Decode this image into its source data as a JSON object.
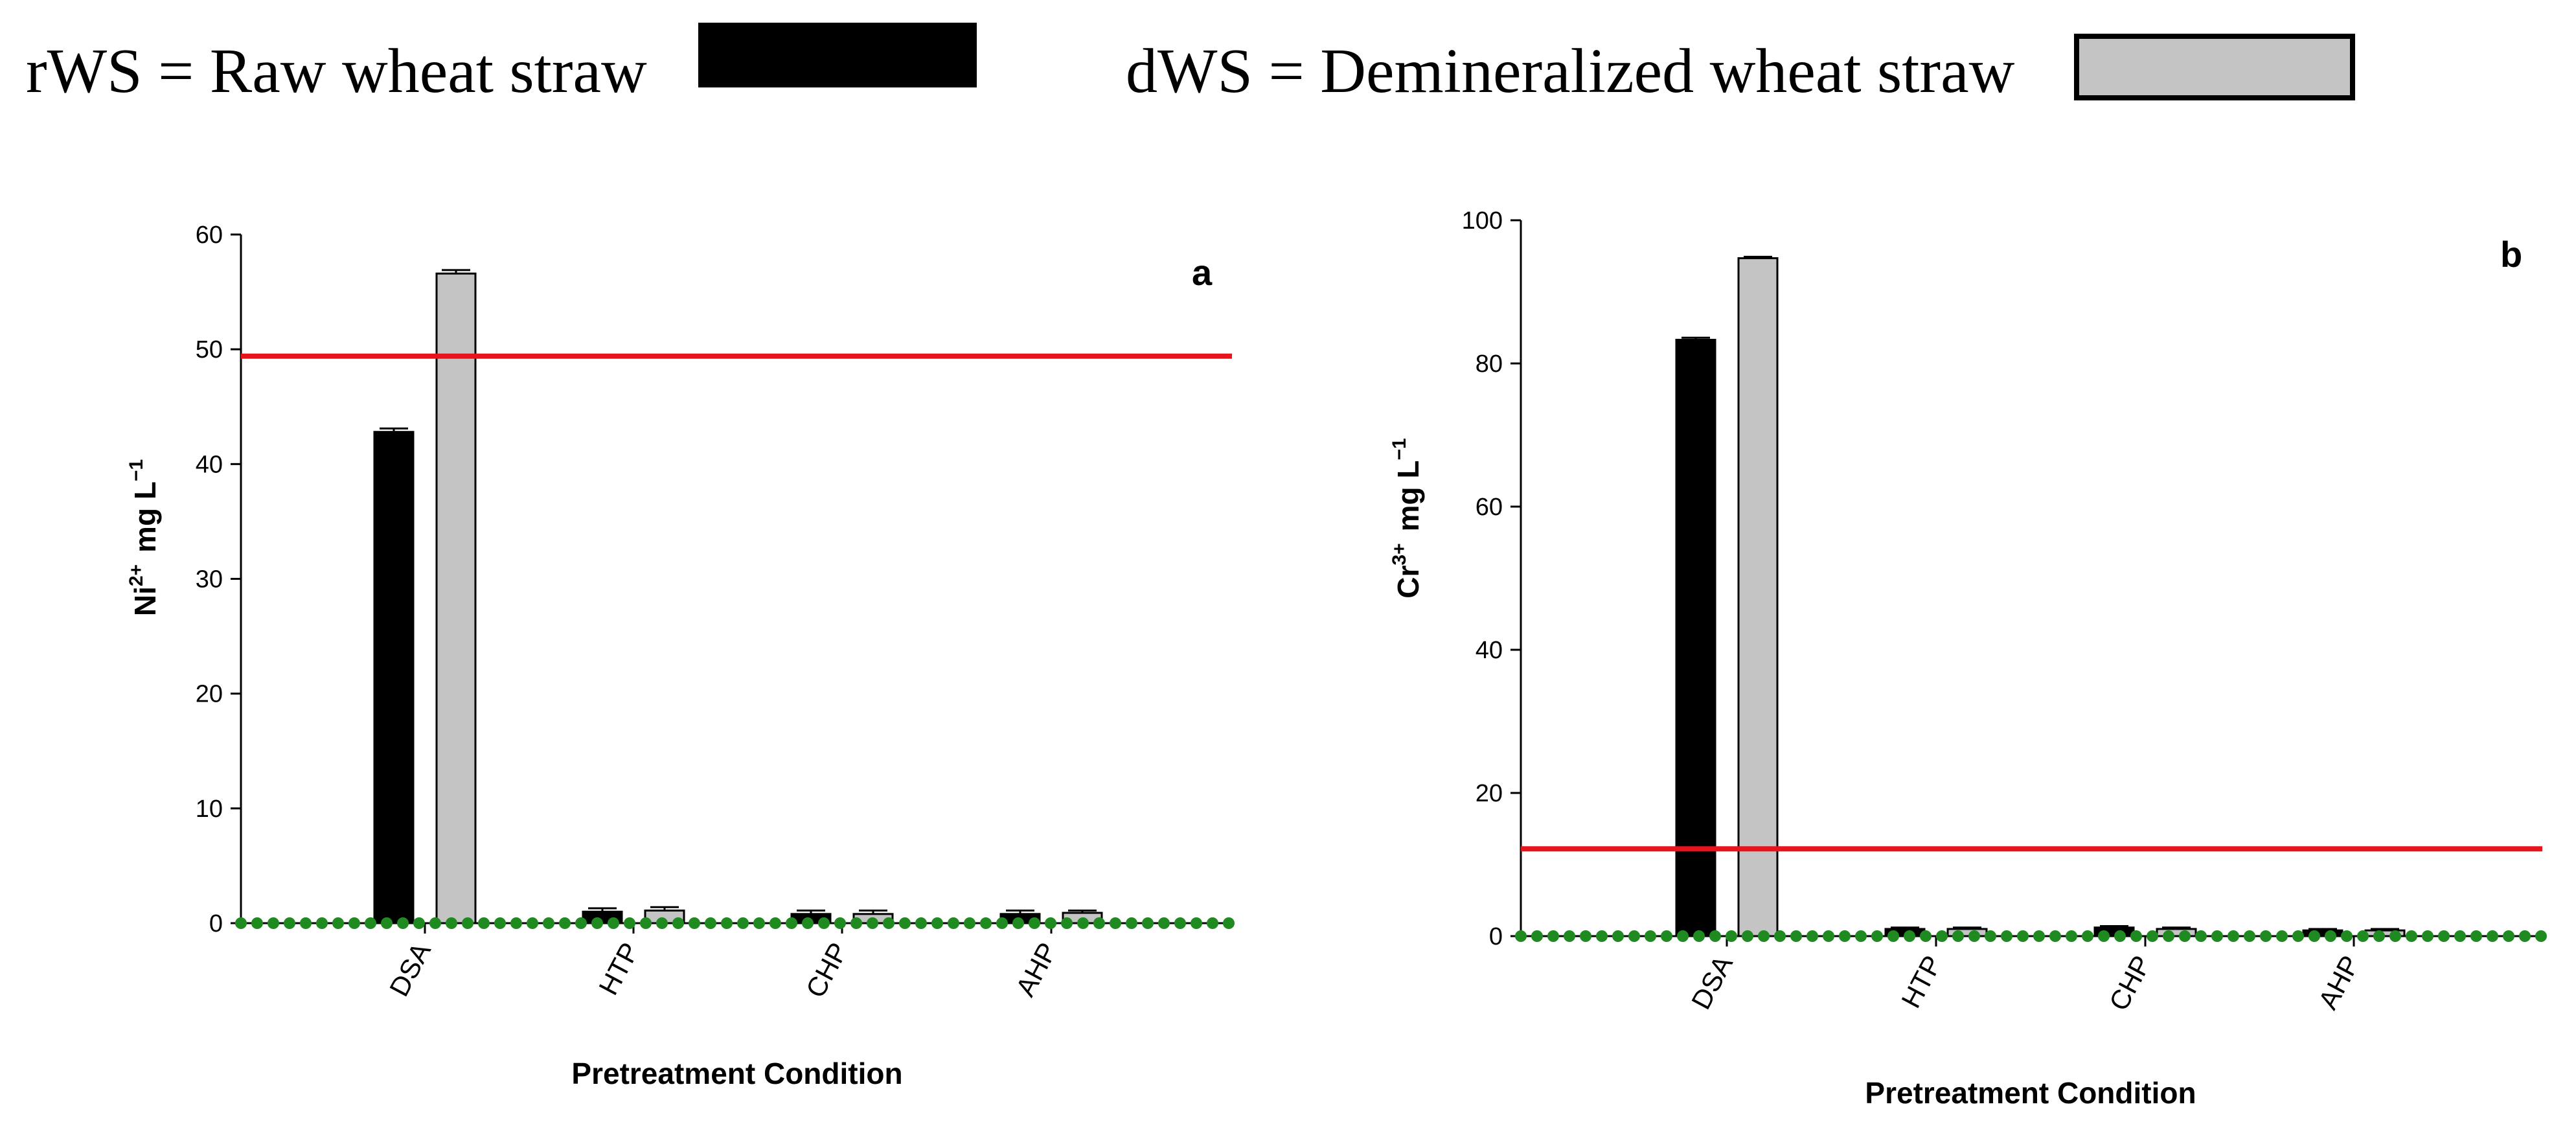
{
  "legend": {
    "raw": {
      "label": "rWS = Raw wheat straw",
      "color": "#000000"
    },
    "demin": {
      "label": "dWS = Demineralized wheat straw",
      "color": "#c4c4c4"
    }
  },
  "colors": {
    "threshold": "#e8141c",
    "dots": "#1f8a1f",
    "axis": "#000000"
  },
  "chart_data": [
    {
      "type": "bar",
      "panel": "a",
      "categories": [
        "DSA",
        "HTP",
        "CHP",
        "AHP"
      ],
      "series": [
        {
          "name": "rWS",
          "values": [
            42.8,
            1.0,
            0.8,
            0.8
          ],
          "errors": [
            0.3,
            0.3,
            0.3,
            0.3
          ]
        },
        {
          "name": "dWS",
          "values": [
            56.6,
            1.1,
            0.8,
            0.9
          ],
          "errors": [
            0.3,
            0.3,
            0.3,
            0.2
          ]
        }
      ],
      "xlabel": "Pretreatment Condition",
      "ylabel": {
        "base": "Ni",
        "sup": "2+",
        "unit": "mg L",
        "unit_sup": "−1"
      },
      "ylim": [
        0,
        60
      ],
      "yticks": [
        0,
        10,
        20,
        30,
        40,
        50,
        60
      ],
      "threshold": 49.4,
      "baseline_dots": 0
    },
    {
      "type": "bar",
      "panel": "b",
      "categories": [
        "DSA",
        "HTP",
        "CHP",
        "AHP"
      ],
      "series": [
        {
          "name": "rWS",
          "values": [
            83.3,
            1.0,
            1.2,
            0.8
          ],
          "errors": [
            0.3,
            0.2,
            0.2,
            0.2
          ]
        },
        {
          "name": "dWS",
          "values": [
            94.7,
            1.0,
            1.0,
            0.8
          ],
          "errors": [
            0.2,
            0.2,
            0.2,
            0.2
          ]
        }
      ],
      "xlabel": "Pretreatment Condition",
      "ylabel": {
        "base": "Cr",
        "sup": "3+",
        "unit": "mg L",
        "unit_sup": "−1"
      },
      "ylim": [
        0,
        100
      ],
      "yticks": [
        0,
        20,
        40,
        60,
        80,
        100
      ],
      "threshold": 12.2,
      "baseline_dots": 0
    }
  ]
}
